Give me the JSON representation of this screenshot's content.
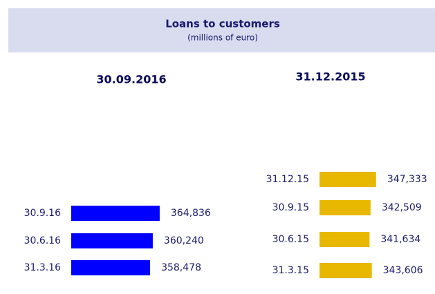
{
  "header": {
    "title": "Loans to customers",
    "subtitle": "(millions of euro)"
  },
  "chart_data": [
    {
      "type": "bar",
      "title": "30.09.2016",
      "orientation": "horizontal",
      "color": "#0000ff",
      "categories": [
        "30.9.16",
        "30.6.16",
        "31.3.16"
      ],
      "values": [
        364836,
        360240,
        358478
      ],
      "value_labels": [
        "364,836",
        "360,240",
        "358,478"
      ],
      "xlim": [
        306000,
        398000
      ]
    },
    {
      "type": "bar",
      "title": "31.12.2015",
      "orientation": "horizontal",
      "color": "#e8b800",
      "categories": [
        "31.12.15",
        "30.9.15",
        "30.6.15",
        "31.3.15"
      ],
      "values": [
        347333,
        342509,
        341634,
        343606
      ],
      "value_labels": [
        "347,333",
        "342,509",
        "341,634",
        "343,606"
      ],
      "xlim": [
        298000,
        418600
      ]
    }
  ]
}
